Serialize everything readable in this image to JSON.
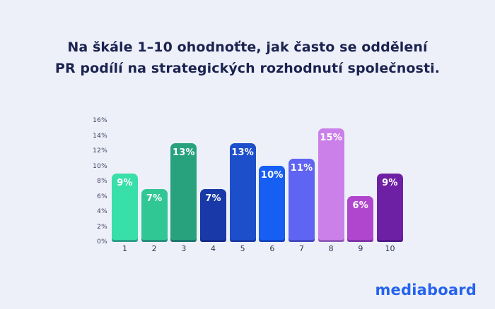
{
  "page": {
    "background": "#eef0f9",
    "title_color": "#1b2350"
  },
  "title": {
    "line1": "Na škále 1–10 ohodnoťte, jak často se oddělení",
    "line2": "PR podílí na strategických rozhodnutí společnosti."
  },
  "brand": {
    "logo_text": "mediaboard",
    "logo_color": "#2563ed"
  },
  "chart_data": {
    "type": "bar",
    "title": "Na škále 1–10 ohodnoťte, jak často se oddělení PR podílí na strategických rozhodnutí společnosti.",
    "categories": [
      "1",
      "2",
      "3",
      "4",
      "5",
      "6",
      "7",
      "8",
      "9",
      "10"
    ],
    "values": [
      9,
      7,
      13,
      7,
      13,
      10,
      11,
      15,
      6,
      9
    ],
    "value_labels": [
      "9%",
      "7%",
      "13%",
      "7%",
      "13%",
      "10%",
      "11%",
      "15%",
      "6%",
      "9%"
    ],
    "bar_colors": [
      "#38dfa8",
      "#31c795",
      "#28a27d",
      "#1839a7",
      "#1d4fca",
      "#175ef2",
      "#5f64f2",
      "#ca80e8",
      "#b046cd",
      "#6e20a5"
    ],
    "value_label_color": "#ffffff",
    "xlabel": "",
    "ylabel": "",
    "ylim": [
      0,
      16
    ],
    "ytick_step": 2,
    "ytick_labels": [
      "0%",
      "2%",
      "4%",
      "6%",
      "8%",
      "10%",
      "12%",
      "14%",
      "16%"
    ],
    "grid": false,
    "legend": false
  }
}
